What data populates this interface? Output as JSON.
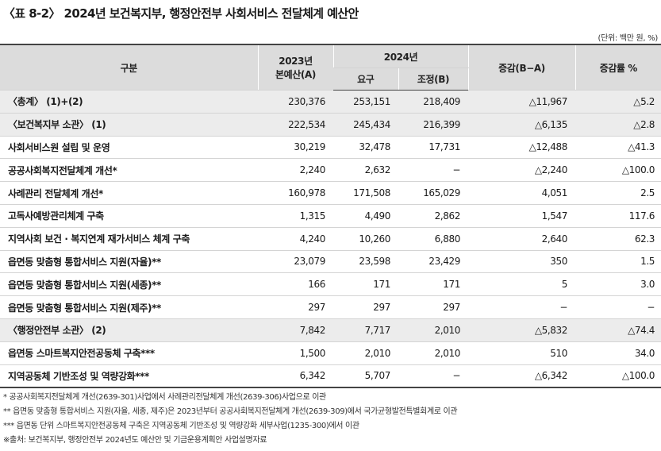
{
  "title": "〈표 8-2〉 2024년 보건복지부, 행정안전부 사회서비스 전달체계 예산안",
  "unit": "(단위: 백만 원, %)",
  "headers": {
    "category": "구분",
    "budget2023_line1": "2023년",
    "budget2023_line2": "본예산(A)",
    "year2024": "2024년",
    "request": "요구",
    "adjusted": "조정(B)",
    "change": "증감(B−A)",
    "rate": "증감률 %"
  },
  "rows": [
    {
      "name": "〈총계〉 (1)+(2)",
      "b2023": "230,376",
      "req": "253,151",
      "adj": "218,409",
      "chg": "△11,967",
      "rate": "△5.2"
    },
    {
      "name": "〈보건복지부 소관〉 (1)",
      "b2023": "222,534",
      "req": "245,434",
      "adj": "216,399",
      "chg": "△6,135",
      "rate": "△2.8"
    },
    {
      "name": "사회서비스원 설립 및 운영",
      "b2023": "30,219",
      "req": "32,478",
      "adj": "17,731",
      "chg": "△12,488",
      "rate": "△41.3"
    },
    {
      "name": "공공사회복지전달체계 개선*",
      "b2023": "2,240",
      "req": "2,632",
      "adj": "−",
      "chg": "△2,240",
      "rate": "△100.0"
    },
    {
      "name": "사례관리 전달체계 개선*",
      "b2023": "160,978",
      "req": "171,508",
      "adj": "165,029",
      "chg": "4,051",
      "rate": "2.5"
    },
    {
      "name": "고독사예방관리체계 구축",
      "b2023": "1,315",
      "req": "4,490",
      "adj": "2,862",
      "chg": "1,547",
      "rate": "117.6"
    },
    {
      "name": "지역사회 보건 · 복지연계 재가서비스 체계 구축",
      "b2023": "4,240",
      "req": "10,260",
      "adj": "6,880",
      "chg": "2,640",
      "rate": "62.3"
    },
    {
      "name": "읍면동 맞춤형 통합서비스 지원(자율)**",
      "b2023": "23,079",
      "req": "23,598",
      "adj": "23,429",
      "chg": "350",
      "rate": "1.5"
    },
    {
      "name": "읍면동 맞춤형 통합서비스 지원(세종)**",
      "b2023": "166",
      "req": "171",
      "adj": "171",
      "chg": "5",
      "rate": "3.0"
    },
    {
      "name": "읍면동 맞춤형 통합서비스 지원(제주)**",
      "b2023": "297",
      "req": "297",
      "adj": "297",
      "chg": "−",
      "rate": "−"
    },
    {
      "name": "〈행정안전부 소관〉 (2)",
      "b2023": "7,842",
      "req": "7,717",
      "adj": "2,010",
      "chg": "△5,832",
      "rate": "△74.4"
    },
    {
      "name": "읍면동 스마트복지안전공동체 구축***",
      "b2023": "1,500",
      "req": "2,010",
      "adj": "2,010",
      "chg": "510",
      "rate": "34.0"
    },
    {
      "name": "지역공동체 기반조성 및 역량강화***",
      "b2023": "6,342",
      "req": "5,707",
      "adj": "−",
      "chg": "△6,342",
      "rate": "△100.0"
    }
  ],
  "notes": [
    "* 공공사회복지전달체계 개선(2639-301)사업에서 사례관리전달체계 개선(2639-306)사업으로 이관",
    "** 읍면동 맞춤형 통합서비스 지원(자율, 세종, 제주)은 2023년부터 공공사회복지전달체계 개선(2639-309)에서 국가균형발전특별회계로 이관",
    "*** 읍면동 단위 스마트복지안전공동체 구축은 지역공동체 기반조성 및 역량강화 세부사업(1235-300)에서 이관",
    "※출처: 보건복지부, 행정안전부 2024년도 예산안 및 기금운용계획안 사업설명자료"
  ]
}
